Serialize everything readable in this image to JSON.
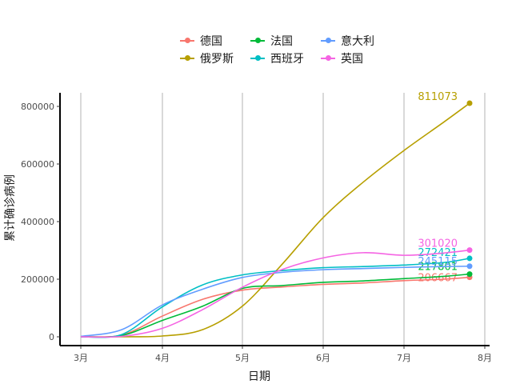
{
  "chart_data": {
    "type": "line",
    "title": "",
    "xlabel": "日期",
    "ylabel": "累计确诊病例",
    "x_ticks": [
      "3月",
      "4月",
      "5月",
      "6月",
      "7月",
      "8月"
    ],
    "y_ticks": [
      "0",
      "200000",
      "400000",
      "600000",
      "800000"
    ],
    "ylim": [
      0,
      811073
    ],
    "xlim": [
      "2020-02-25",
      "2020-08-01"
    ],
    "grid": "vertical major gridlines",
    "legend_position": "top",
    "x": [
      "3月1日",
      "3月15日",
      "4月1日",
      "4月15日",
      "5月1日",
      "5月15日",
      "6月1日",
      "6月15日",
      "7月1日",
      "7月15日",
      "7月26日"
    ],
    "series": [
      {
        "name": "德国",
        "color": "#F8766D",
        "values": [
          130,
          5800,
          72000,
          130000,
          162000,
          173000,
          182000,
          187000,
          195000,
          200000,
          206667
        ],
        "end_label": "206667"
      },
      {
        "name": "俄罗斯",
        "color": "#B79F00",
        "values": [
          0,
          60,
          2800,
          24500,
          106500,
          253000,
          414000,
          537000,
          647000,
          746000,
          811073
        ],
        "end_label": "811073"
      },
      {
        "name": "法国",
        "color": "#00BA38",
        "values": [
          130,
          4500,
          57000,
          106000,
          168000,
          178000,
          189000,
          194000,
          202000,
          210000,
          217801
        ],
        "end_label": "217801"
      },
      {
        "name": "西班牙",
        "color": "#00BFC4",
        "values": [
          84,
          7800,
          104000,
          180000,
          215000,
          230000,
          240000,
          244000,
          249000,
          258000,
          272421
        ],
        "end_label": "272421"
      },
      {
        "name": "意大利",
        "color": "#619CFF",
        "values": [
          1700,
          24700,
          110500,
          165000,
          206000,
          224000,
          233000,
          237000,
          241000,
          244000,
          245115
        ],
        "end_label": "245115"
      },
      {
        "name": "英国",
        "color": "#F564E3",
        "values": [
          36,
          1400,
          29500,
          94000,
          172000,
          234000,
          274000,
          292000,
          283000,
          291000,
          301020
        ],
        "end_label": "301020"
      }
    ]
  },
  "legend": {
    "items": [
      {
        "label": "德国",
        "color": "#F8766D"
      },
      {
        "label": "法国",
        "color": "#00BA38"
      },
      {
        "label": "意大利",
        "color": "#619CFF"
      },
      {
        "label": "俄罗斯",
        "color": "#B79F00"
      },
      {
        "label": "西班牙",
        "color": "#00BFC4"
      },
      {
        "label": "英国",
        "color": "#F564E3"
      }
    ]
  },
  "axes": {
    "xlabel": "日期",
    "ylabel": "累计确诊病例"
  }
}
